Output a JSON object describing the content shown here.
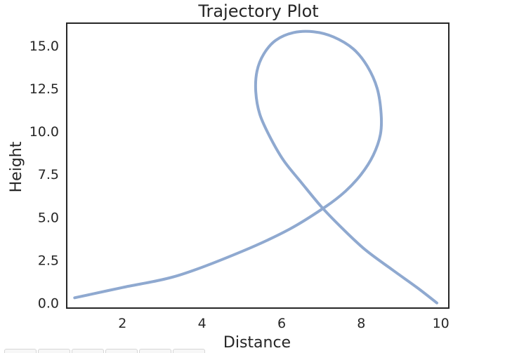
{
  "chart_data": {
    "type": "line",
    "title": "Trajectory Plot",
    "xlabel": "Distance",
    "ylabel": "Height",
    "xlim": [
      0.6,
      10.2
    ],
    "ylim": [
      -0.3,
      16.3
    ],
    "xticks": [
      2,
      4,
      6,
      8,
      10
    ],
    "xtick_labels": [
      "2",
      "4",
      "6",
      "8",
      "10"
    ],
    "yticks": [
      0.0,
      2.5,
      5.0,
      7.5,
      10.0,
      12.5,
      15.0
    ],
    "ytick_labels": [
      "0.0",
      "2.5",
      "5.0",
      "7.5",
      "10.0",
      "12.5",
      "15.0"
    ],
    "grid": false,
    "series": [
      {
        "color": "#8fa9d0",
        "x": [
          0.8,
          2.0,
          3.4,
          5.0,
          6.2,
          7.1,
          7.6,
          8.0,
          8.3,
          8.48,
          8.5,
          8.4,
          8.15,
          7.8,
          7.3,
          6.8,
          6.3,
          5.85,
          5.55,
          5.38,
          5.35,
          5.45,
          5.7,
          6.05,
          6.5,
          7.0,
          7.5,
          8.1,
          8.8,
          9.4,
          9.9
        ],
        "y": [
          0.3,
          0.9,
          1.6,
          3.0,
          4.3,
          5.6,
          6.5,
          7.5,
          8.6,
          9.8,
          11.0,
          12.5,
          13.8,
          14.8,
          15.5,
          15.8,
          15.75,
          15.3,
          14.5,
          13.5,
          12.3,
          11.0,
          9.7,
          8.3,
          7.0,
          5.6,
          4.4,
          3.1,
          1.9,
          0.9,
          0.0
        ]
      }
    ]
  },
  "toolbar": {
    "tab_count_hint": "",
    "tabs": [
      "",
      "",
      "",
      "",
      "",
      ""
    ]
  }
}
